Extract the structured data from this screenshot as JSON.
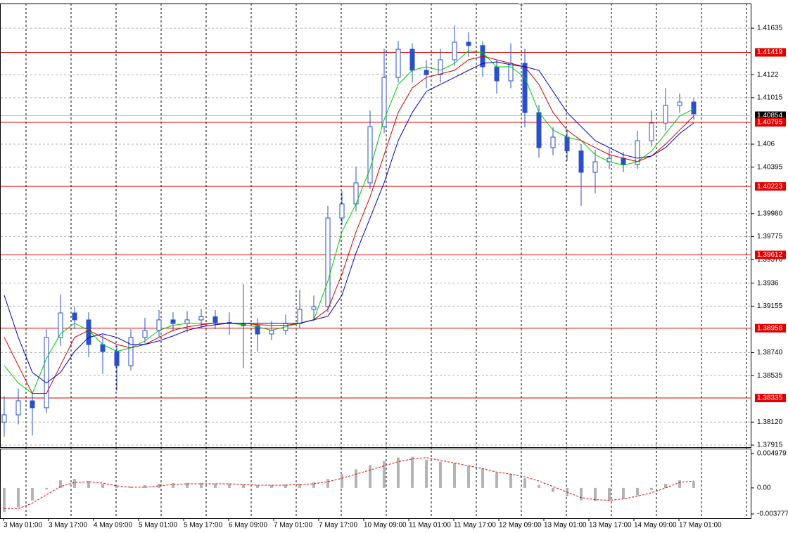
{
  "chart_data": {
    "type": "candlestick",
    "color": "#2a4fc8",
    "ylim": [
      1.37896,
      1.41855
    ],
    "yticks": [
      1.41635,
      1.4122,
      1.41015,
      1.406,
      1.40395,
      {
        "value": 1.3998,
        "label": "1.39980"
      },
      1.39775,
      {
        "value": 1.3957,
        "label": "1.39570"
      },
      1.3936,
      1.39155,
      {
        "value": 1.3874,
        "label": "1.38740"
      },
      1.38535,
      {
        "value": 1.3812,
        "label": "1.38120"
      },
      1.37915
    ],
    "levels": [
      1.41419,
      1.40795,
      1.40223,
      1.39612,
      1.38958,
      1.38335
    ],
    "level_color": "#e00000",
    "current_price": 1.40854,
    "x_labels": [
      "3 May 01:00",
      "3 May 17:00",
      "4 May 09:00",
      "5 May 01:00",
      "5 May 17:00",
      "6 May 09:00",
      "7 May 01:00",
      "7 May 17:00",
      "10 May 09:00",
      "11 May 01:00",
      "11 May 17:00",
      "12 May 09:00",
      "13 May 01:00",
      "13 May 17:00",
      "14 May 09:00",
      "17 May 01:00"
    ],
    "open": [
      1.3812,
      1.38185,
      1.3831,
      1.38248,
      1.38875,
      1.39094,
      1.39032,
      1.38812,
      1.38749,
      1.38624,
      1.38875,
      1.38938,
      1.39032,
      1.39,
      1.39032,
      1.3906,
      1.3901,
      1.39,
      1.3898,
      1.38906,
      1.38938,
      1.39,
      1.39126,
      1.3915,
      1.39941,
      1.40067,
      1.40255,
      1.40757,
      1.41196,
      1.41447,
      1.41259,
      1.4122,
      1.41353,
      1.4151,
      1.4148,
      1.4129,
      1.41165,
      1.41321,
      1.40882,
      1.40569,
      1.40663,
      1.4054,
      1.40349,
      1.40443,
      1.40474,
      1.4042,
      1.40631,
      1.40788,
      1.40945,
      1.40976
    ],
    "high": [
      1.3835,
      1.3842,
      1.3838,
      1.3895,
      1.3926,
      1.3915,
      1.391,
      1.389,
      1.388,
      1.3895,
      1.3905,
      1.3912,
      1.391,
      1.3911,
      1.3913,
      1.3912,
      1.391,
      1.3935,
      1.3905,
      1.3902,
      1.3908,
      1.393,
      1.3925,
      1.4005,
      1.4018,
      1.404,
      1.409,
      1.4145,
      1.4152,
      1.415,
      1.4135,
      1.4145,
      1.4166,
      1.416,
      1.4152,
      1.4135,
      1.415,
      1.4145,
      1.4095,
      1.4075,
      1.4072,
      1.406,
      1.4055,
      1.4056,
      1.4053,
      1.4072,
      1.409,
      1.411,
      1.4105,
      1.4101
    ],
    "low": [
      1.3799,
      1.381,
      1.38,
      1.382,
      1.388,
      1.3895,
      1.387,
      1.3855,
      1.384,
      1.3858,
      1.3882,
      1.3888,
      1.3893,
      1.3892,
      1.3896,
      1.3895,
      1.389,
      1.386,
      1.3875,
      1.3885,
      1.389,
      1.3896,
      1.3902,
      1.391,
      1.3988,
      1.4,
      1.402,
      1.407,
      1.4115,
      1.4115,
      1.411,
      1.4115,
      1.413,
      1.4138,
      1.412,
      1.4105,
      1.411,
      1.4075,
      1.4048,
      1.405,
      1.4045,
      1.4005,
      1.4016,
      1.4038,
      1.4035,
      1.4038,
      1.4058,
      1.4072,
      1.4088,
      1.4082
    ],
    "close": [
      1.38185,
      1.3831,
      1.38248,
      1.38875,
      1.39094,
      1.39032,
      1.38812,
      1.38749,
      1.38624,
      1.38875,
      1.38938,
      1.39032,
      1.39,
      1.39032,
      1.3906,
      1.3901,
      1.39,
      1.3898,
      1.38906,
      1.38938,
      1.39,
      1.39126,
      1.3915,
      1.39941,
      1.40067,
      1.40255,
      1.40757,
      1.41196,
      1.41447,
      1.41259,
      1.4122,
      1.41353,
      1.4151,
      1.4148,
      1.4129,
      1.41165,
      1.41321,
      1.40882,
      1.40569,
      1.40663,
      1.4054,
      1.40349,
      1.40443,
      1.40474,
      1.4042,
      1.40631,
      1.40788,
      1.40945,
      1.40976,
      1.4087
    ],
    "moving_averages": [
      {
        "color": "#00c800",
        "values": [
          1.38625,
          1.38469,
          1.38375,
          1.38688,
          1.38908,
          1.39002,
          1.38939,
          1.38813,
          1.38751,
          1.38782,
          1.38845,
          1.38939,
          1.38983,
          1.39002,
          1.39002,
          1.39002,
          1.39002,
          1.38989,
          1.3897,
          1.38939,
          1.3897,
          1.39002,
          1.39033,
          1.39378,
          1.39817,
          1.40067,
          1.40381,
          1.4082,
          1.41133,
          1.41259,
          1.4129,
          1.41259,
          1.41321,
          1.41434,
          1.41416,
          1.4129,
          1.4129,
          1.41196,
          1.40883,
          1.40726,
          1.40663,
          1.40632,
          1.40506,
          1.40444,
          1.40412,
          1.40444,
          1.40538,
          1.40695,
          1.40851,
          1.40914
        ]
      },
      {
        "color": "#d00000",
        "values": [
          1.38876,
          1.38625,
          1.38375,
          1.38375,
          1.38625,
          1.38876,
          1.38939,
          1.38876,
          1.38813,
          1.38782,
          1.38813,
          1.38876,
          1.38939,
          1.3897,
          1.38989,
          1.39002,
          1.39002,
          1.39002,
          1.38989,
          1.38983,
          1.38983,
          1.39002,
          1.39033,
          1.39127,
          1.3944,
          1.39817,
          1.4013,
          1.40506,
          1.40883,
          1.41102,
          1.41196,
          1.41227,
          1.41259,
          1.41353,
          1.41384,
          1.41353,
          1.41321,
          1.4129,
          1.41133,
          1.40883,
          1.40726,
          1.40632,
          1.40569,
          1.40506,
          1.40475,
          1.40444,
          1.40494,
          1.406,
          1.40726,
          1.40851
        ]
      },
      {
        "color": "#0000c8",
        "values": [
          1.39252,
          1.38876,
          1.38563,
          1.38469,
          1.38563,
          1.38751,
          1.38876,
          1.38908,
          1.38876,
          1.38813,
          1.38813,
          1.38845,
          1.38889,
          1.38939,
          1.3897,
          1.38989,
          1.39002,
          1.39002,
          1.39002,
          1.39002,
          1.39002,
          1.39002,
          1.39033,
          1.39064,
          1.39252,
          1.39629,
          1.39942,
          1.40256,
          1.40632,
          1.40883,
          1.41071,
          1.41133,
          1.41196,
          1.41259,
          1.41321,
          1.41334,
          1.41309,
          1.4129,
          1.41259,
          1.41071,
          1.40883,
          1.40757,
          1.40632,
          1.40569,
          1.40506,
          1.40475,
          1.40494,
          1.40569,
          1.40695,
          1.40789
        ]
      }
    ],
    "indicator": {
      "ylim": [
        -0.00429,
        0.00549
      ],
      "yticks": [
        0.004979,
        {
          "value": 0,
          "label": "0.00"
        },
        -0.003777
      ],
      "histogram_color": "#b4b4b4",
      "signal_color": "#e00000",
      "histogram": [
        -0.0035,
        -0.0028,
        -0.0018,
        -0.0002,
        0.0011,
        0.0013,
        0.001,
        0.0006,
        0.0002,
        0.0002,
        0.0004,
        0.0006,
        0.0007,
        0.0007,
        0.0007,
        0.0006,
        0.0006,
        0.0005,
        0.0004,
        0.0004,
        0.0005,
        0.0006,
        0.0008,
        0.0013,
        0.002,
        0.0027,
        0.0033,
        0.0039,
        0.0044,
        0.0045,
        0.0041,
        0.0038,
        0.0036,
        0.0032,
        0.0028,
        0.0022,
        0.002,
        0.0014,
        0.0004,
        -0.0006,
        -0.0012,
        -0.0018,
        -0.0019,
        -0.0018,
        -0.0016,
        -0.0011,
        -0.0003,
        0.0006,
        0.0011,
        0.0009
      ],
      "signal": [
        -0.003,
        -0.003,
        -0.0022,
        -0.001,
        0.0002,
        0.0008,
        0.0009,
        0.0007,
        0.0003,
        0.0001,
        0.0001,
        0.0003,
        0.0005,
        0.0006,
        0.0006,
        0.0006,
        0.0006,
        0.0005,
        0.0004,
        0.0004,
        0.0004,
        0.0005,
        0.0006,
        0.0009,
        0.0014,
        0.002,
        0.0026,
        0.0032,
        0.0038,
        0.0042,
        0.0044,
        0.004,
        0.0036,
        0.0032,
        0.0028,
        0.0023,
        0.002,
        0.0016,
        0.001,
        0.0002,
        -0.0006,
        -0.0014,
        -0.0017,
        -0.0018,
        -0.0016,
        -0.0012,
        -0.0007,
        0,
        0.0008,
        0.001
      ]
    }
  }
}
